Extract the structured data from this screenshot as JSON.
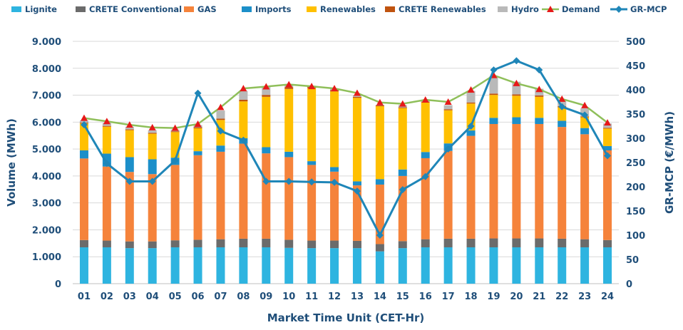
{
  "chart_data": {
    "type": "bar",
    "stacked": true,
    "title": "",
    "xlabel": "Market Time Unit (CET-Hr)",
    "ylabel": "Volume (MWh)",
    "y2label": "GR-MCP (€/MWh)",
    "ylim": [
      0,
      9000
    ],
    "y2lim": [
      0,
      500
    ],
    "yticks": [
      "0",
      "1.000",
      "2.000",
      "3.000",
      "4.000",
      "5.000",
      "6.000",
      "7.000",
      "8.000",
      "9.000"
    ],
    "y2ticks": [
      "0",
      "50",
      "100",
      "150",
      "200",
      "250",
      "300",
      "350",
      "400",
      "450",
      "500"
    ],
    "categories": [
      "01",
      "02",
      "03",
      "04",
      "05",
      "06",
      "07",
      "08",
      "09",
      "10",
      "11",
      "12",
      "13",
      "14",
      "15",
      "16",
      "17",
      "18",
      "19",
      "20",
      "21",
      "22",
      "23",
      "24"
    ],
    "legend_position": "top",
    "colors": {
      "Lignite": "#2eb4e0",
      "CRETE Conventional": "#6b6b6b",
      "GAS": "#f5833b",
      "Imports": "#1c8fc9",
      "Renewables": "#ffc000",
      "CRETE Renewables": "#c0530f",
      "Hydro": "#b9b9b9",
      "Demand": "#8fbf5a",
      "DemandMarker": "#e61919",
      "GR-MCP": "#1f86b8"
    },
    "series": [
      {
        "name": "Lignite",
        "kind": "bar",
        "values": [
          1350,
          1350,
          1320,
          1320,
          1350,
          1350,
          1350,
          1350,
          1350,
          1330,
          1320,
          1320,
          1320,
          1200,
          1320,
          1350,
          1350,
          1350,
          1350,
          1350,
          1350,
          1350,
          1350,
          1350
        ]
      },
      {
        "name": "CRETE Conventional",
        "kind": "bar",
        "values": [
          270,
          250,
          250,
          250,
          260,
          280,
          300,
          320,
          320,
          300,
          280,
          280,
          270,
          270,
          260,
          300,
          320,
          320,
          330,
          330,
          330,
          320,
          300,
          270
        ]
      },
      {
        "name": "GAS",
        "kind": "bar",
        "values": [
          3030,
          2750,
          2580,
          2500,
          2800,
          3140,
          3250,
          3530,
          3170,
          3070,
          2810,
          2560,
          2060,
          2210,
          2420,
          3010,
          3260,
          3820,
          4250,
          4250,
          4250,
          4150,
          3900,
          3330
        ]
      },
      {
        "name": "Imports",
        "kind": "bar",
        "values": [
          300,
          480,
          550,
          550,
          270,
          150,
          230,
          200,
          230,
          200,
          140,
          170,
          150,
          200,
          240,
          230,
          280,
          200,
          230,
          250,
          230,
          230,
          230,
          160
        ]
      },
      {
        "name": "Renewables",
        "kind": "bar",
        "values": [
          1000,
          1000,
          1000,
          950,
          950,
          850,
          950,
          1370,
          1870,
          2330,
          2710,
          2810,
          3100,
          2710,
          2280,
          1840,
          1230,
          1000,
          850,
          800,
          780,
          500,
          400,
          650
        ]
      },
      {
        "name": "CRETE Renewables",
        "kind": "bar",
        "values": [
          30,
          30,
          30,
          30,
          30,
          40,
          50,
          60,
          70,
          70,
          60,
          50,
          40,
          30,
          30,
          30,
          40,
          40,
          50,
          50,
          50,
          40,
          30,
          30
        ]
      },
      {
        "name": "Hydro",
        "kind": "bar",
        "values": [
          80,
          110,
          100,
          100,
          60,
          80,
          300,
          330,
          300,
          60,
          30,
          60,
          50,
          20,
          80,
          30,
          150,
          430,
          650,
          470,
          250,
          250,
          300,
          160
        ]
      },
      {
        "name": "Demand",
        "kind": "line",
        "axis": "left",
        "values": [
          6150,
          6030,
          5900,
          5800,
          5780,
          5930,
          6550,
          7250,
          7320,
          7400,
          7330,
          7250,
          7080,
          6730,
          6680,
          6830,
          6750,
          7200,
          7740,
          7440,
          7220,
          6860,
          6620,
          5980
        ]
      },
      {
        "name": "GR-MCP",
        "kind": "line",
        "axis": "right",
        "values": [
          328,
          248,
          211,
          211,
          254,
          393,
          315,
          296,
          211,
          211,
          210,
          209,
          191,
          100,
          194,
          221,
          278,
          325,
          441,
          460,
          441,
          365,
          348,
          264
        ]
      }
    ]
  }
}
